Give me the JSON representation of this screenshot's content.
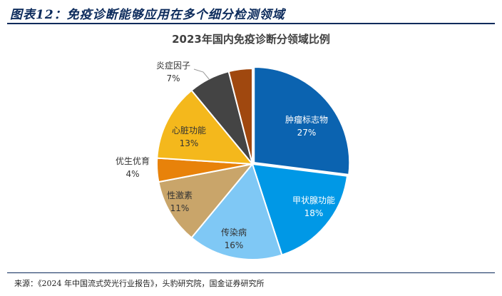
{
  "figure_title": "图表12：免疫诊断能够应用在多个细分检测领域",
  "source": "来源：《2024 年中国流式荧光行业报告》，头豹研究院，国金证券研究所",
  "chart_data": {
    "type": "pie",
    "title": "2023年国内免疫诊断分领域比例",
    "slices": [
      {
        "label": "肿瘤标志物",
        "value": 27,
        "value_label": "27%",
        "color": "#0b63b0"
      },
      {
        "label": "甲状腺功能",
        "value": 18,
        "value_label": "18%",
        "color": "#0098e6"
      },
      {
        "label": "传染病",
        "value": 16,
        "value_label": "16%",
        "color": "#7fc8f5"
      },
      {
        "label": "性激素",
        "value": 11,
        "value_label": "11%",
        "color": "#c9a56a"
      },
      {
        "label": "优生优育",
        "value": 4,
        "value_label": "4%",
        "color": "#e8820a"
      },
      {
        "label": "心脏功能",
        "value": 13,
        "value_label": "13%",
        "color": "#f4b81c"
      },
      {
        "label": "炎症因子",
        "value": 7,
        "value_label": "7%",
        "color": "#444444"
      },
      {
        "label": "",
        "value": 4,
        "value_label": "",
        "color": "#a0480f"
      }
    ],
    "legend": "none"
  }
}
